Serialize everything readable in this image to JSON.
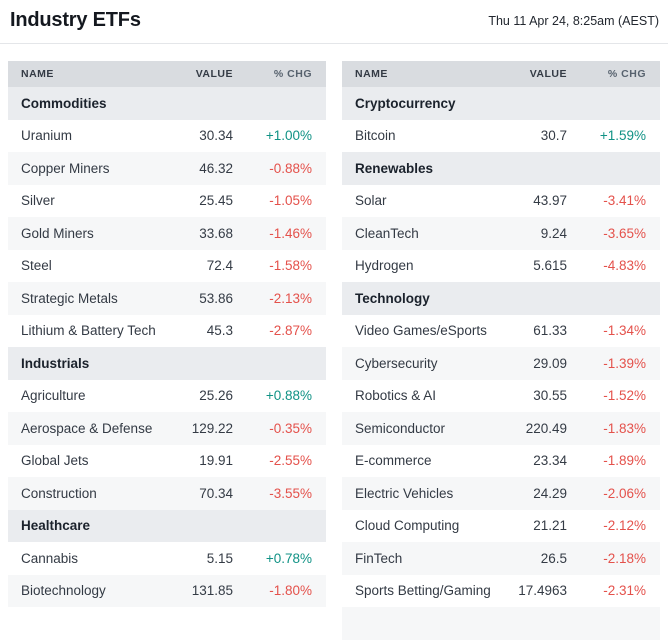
{
  "header": {
    "title": "Industry ETFs",
    "datetime": "Thu 11 Apr 24, 8:25am (AEST)"
  },
  "columns": {
    "name": "NAME",
    "value": "VALUE",
    "chg": "% CHG"
  },
  "colors": {
    "positive": "#109285",
    "negative": "#e4514b",
    "column_header_bg": "#d9dce0",
    "section_header_bg": "#eaecef",
    "row_stripe_bg": "#f6f7f8"
  },
  "tables": [
    {
      "sections": [
        {
          "title": "Commodities",
          "rows": [
            {
              "name": "Uranium",
              "value": "30.34",
              "chg": "+1.00%",
              "dir": "up"
            },
            {
              "name": "Copper Miners",
              "value": "46.32",
              "chg": "-0.88%",
              "dir": "down"
            },
            {
              "name": "Silver",
              "value": "25.45",
              "chg": "-1.05%",
              "dir": "down"
            },
            {
              "name": "Gold Miners",
              "value": "33.68",
              "chg": "-1.46%",
              "dir": "down"
            },
            {
              "name": "Steel",
              "value": "72.4",
              "chg": "-1.58%",
              "dir": "down"
            },
            {
              "name": "Strategic Metals",
              "value": "53.86",
              "chg": "-2.13%",
              "dir": "down"
            },
            {
              "name": "Lithium & Battery Tech",
              "value": "45.3",
              "chg": "-2.87%",
              "dir": "down"
            }
          ]
        },
        {
          "title": "Industrials",
          "rows": [
            {
              "name": "Agriculture",
              "value": "25.26",
              "chg": "+0.88%",
              "dir": "up"
            },
            {
              "name": "Aerospace & Defense",
              "value": "129.22",
              "chg": "-0.35%",
              "dir": "down"
            },
            {
              "name": "Global Jets",
              "value": "19.91",
              "chg": "-2.55%",
              "dir": "down"
            },
            {
              "name": "Construction",
              "value": "70.34",
              "chg": "-3.55%",
              "dir": "down"
            }
          ]
        },
        {
          "title": "Healthcare",
          "rows": [
            {
              "name": "Cannabis",
              "value": "5.15",
              "chg": "+0.78%",
              "dir": "up"
            },
            {
              "name": "Biotechnology",
              "value": "131.85",
              "chg": "-1.80%",
              "dir": "down"
            }
          ]
        }
      ]
    },
    {
      "sections": [
        {
          "title": "Cryptocurrency",
          "rows": [
            {
              "name": "Bitcoin",
              "value": "30.7",
              "chg": "+1.59%",
              "dir": "up"
            }
          ]
        },
        {
          "title": "Renewables",
          "rows": [
            {
              "name": "Solar",
              "value": "43.97",
              "chg": "-3.41%",
              "dir": "down"
            },
            {
              "name": "CleanTech",
              "value": "9.24",
              "chg": "-3.65%",
              "dir": "down"
            },
            {
              "name": "Hydrogen",
              "value": "5.615",
              "chg": "-4.83%",
              "dir": "down"
            }
          ]
        },
        {
          "title": "Technology",
          "rows": [
            {
              "name": "Video Games/eSports",
              "value": "61.33",
              "chg": "-1.34%",
              "dir": "down"
            },
            {
              "name": "Cybersecurity",
              "value": "29.09",
              "chg": "-1.39%",
              "dir": "down"
            },
            {
              "name": "Robotics & AI",
              "value": "30.55",
              "chg": "-1.52%",
              "dir": "down"
            },
            {
              "name": "Semiconductor",
              "value": "220.49",
              "chg": "-1.83%",
              "dir": "down"
            },
            {
              "name": "E-commerce",
              "value": "23.34",
              "chg": "-1.89%",
              "dir": "down"
            },
            {
              "name": "Electric Vehicles",
              "value": "24.29",
              "chg": "-2.06%",
              "dir": "down"
            },
            {
              "name": "Cloud Computing",
              "value": "21.21",
              "chg": "-2.12%",
              "dir": "down"
            },
            {
              "name": "FinTech",
              "value": "26.5",
              "chg": "-2.18%",
              "dir": "down"
            },
            {
              "name": "Sports Betting/Gaming",
              "value": "17.4963",
              "chg": "-2.31%",
              "dir": "down"
            }
          ]
        }
      ]
    }
  ]
}
